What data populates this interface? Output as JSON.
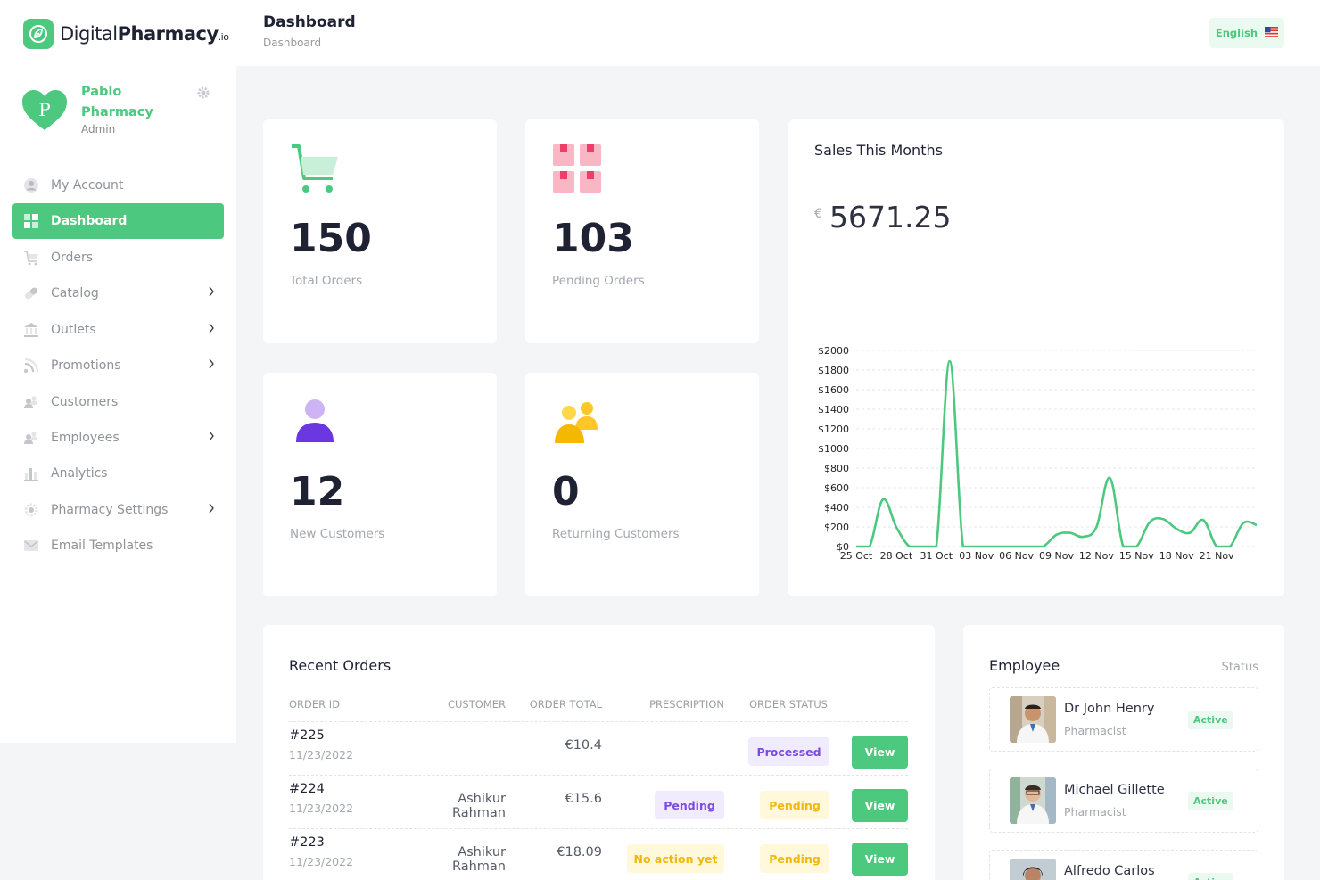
{
  "brand": {
    "name_light": "Digital",
    "name_bold": "Pharmacy",
    "name_suffix": ".io"
  },
  "profile": {
    "avatar_letter": "P",
    "name": "Pablo Pharmacy",
    "role": "Admin"
  },
  "sidebar": {
    "items": [
      {
        "label": "My Account",
        "icon": "user-circle-icon",
        "has_submenu": false,
        "active": false
      },
      {
        "label": "Dashboard",
        "icon": "grid-icon",
        "has_submenu": false,
        "active": true
      },
      {
        "label": "Orders",
        "icon": "cart-icon",
        "has_submenu": false,
        "active": false
      },
      {
        "label": "Catalog",
        "icon": "pill-icon",
        "has_submenu": true,
        "active": false
      },
      {
        "label": "Outlets",
        "icon": "bank-icon",
        "has_submenu": true,
        "active": false
      },
      {
        "label": "Promotions",
        "icon": "rss-icon",
        "has_submenu": true,
        "active": false
      },
      {
        "label": "Customers",
        "icon": "users-icon",
        "has_submenu": false,
        "active": false
      },
      {
        "label": "Employees",
        "icon": "users-icon",
        "has_submenu": true,
        "active": false
      },
      {
        "label": "Analytics",
        "icon": "bar-chart-icon",
        "has_submenu": false,
        "active": false
      },
      {
        "label": "Pharmacy Settings",
        "icon": "gear-icon",
        "has_submenu": true,
        "active": false
      },
      {
        "label": "Email Templates",
        "icon": "mail-icon",
        "has_submenu": false,
        "active": false
      }
    ]
  },
  "header": {
    "title": "Dashboard",
    "breadcrumb": "Dashboard",
    "language": "English"
  },
  "stats": [
    {
      "value": "150",
      "label": "Total Orders",
      "icon": "cart-icon"
    },
    {
      "value": "103",
      "label": "Pending Orders",
      "icon": "boxes-icon"
    },
    {
      "value": "12",
      "label": "New Customers",
      "icon": "user-icon"
    },
    {
      "value": "0",
      "label": "Returning Customers",
      "icon": "users-icon"
    }
  ],
  "sales": {
    "title": "Sales This Months",
    "currency": "€",
    "amount": "5671.25"
  },
  "chart_data": {
    "type": "line",
    "title": "",
    "xlabel": "",
    "ylabel": "",
    "ylim": [
      0,
      2000
    ],
    "y_ticks": [
      "$0",
      "$200",
      "$400",
      "$600",
      "$800",
      "$1000",
      "$1200",
      "$1400",
      "$1600",
      "$1800",
      "$2000"
    ],
    "x_tick_labels": [
      "25 Oct",
      "28 Oct",
      "31 Oct",
      "03 Nov",
      "06 Nov",
      "09 Nov",
      "12 Nov",
      "15 Nov",
      "18 Nov",
      "21 Nov"
    ],
    "color": "#4cc97e",
    "grid": true,
    "x": [
      "25 Oct",
      "26 Oct",
      "27 Oct",
      "28 Oct",
      "29 Oct",
      "30 Oct",
      "31 Oct",
      "01 Nov",
      "02 Nov",
      "03 Nov",
      "04 Nov",
      "05 Nov",
      "06 Nov",
      "07 Nov",
      "08 Nov",
      "09 Nov",
      "10 Nov",
      "11 Nov",
      "12 Nov",
      "13 Nov",
      "14 Nov",
      "15 Nov",
      "16 Nov",
      "17 Nov",
      "18 Nov",
      "19 Nov",
      "20 Nov",
      "21 Nov",
      "22 Nov",
      "23 Nov",
      "24 Nov"
    ],
    "values": [
      0,
      0,
      480,
      200,
      0,
      0,
      0,
      1890,
      0,
      0,
      0,
      0,
      0,
      0,
      0,
      120,
      140,
      100,
      200,
      700,
      0,
      0,
      250,
      280,
      180,
      140,
      270,
      0,
      0,
      240,
      220
    ]
  },
  "recent_orders": {
    "title": "Recent Orders",
    "columns": [
      "ORDER ID",
      "CUSTOMER",
      "ORDER TOTAL",
      "PRESCRIPTION",
      "ORDER STATUS"
    ],
    "view_label": "View",
    "rows": [
      {
        "id": "#225",
        "date": "11/23/2022",
        "customer": "",
        "total": "€10.4",
        "prescription": "",
        "status": "Processed"
      },
      {
        "id": "#224",
        "date": "11/23/2022",
        "customer": "Ashikur Rahman",
        "total": "€15.6",
        "prescription": "Pending",
        "status": "Pending"
      },
      {
        "id": "#223",
        "date": "11/23/2022",
        "customer": "Ashikur Rahman",
        "total": "€18.09",
        "prescription": "No action yet",
        "status": "Pending"
      }
    ]
  },
  "employees": {
    "title": "Employee",
    "status_label": "Status",
    "items": [
      {
        "name": "Dr John Henry",
        "role": "Pharmacist",
        "status": "Active"
      },
      {
        "name": "Michael Gillette",
        "role": "Pharmacist",
        "status": "Active"
      },
      {
        "name": "Alfredo Carlos",
        "role": "",
        "status": "Active"
      }
    ]
  }
}
